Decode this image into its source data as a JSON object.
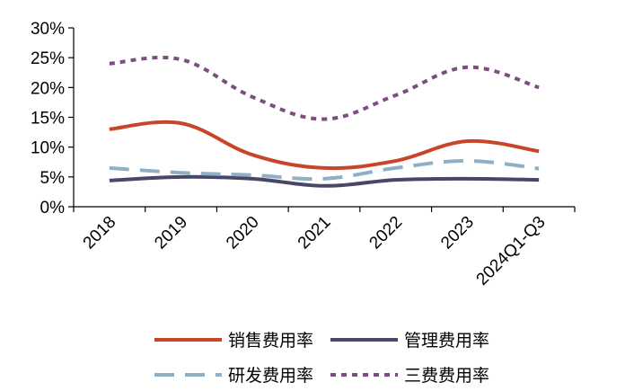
{
  "chart_data": {
    "type": "line",
    "categories": [
      "2018",
      "2019",
      "2020",
      "2021",
      "2022",
      "2023",
      "2024Q1-Q3"
    ],
    "ylim": [
      0,
      30
    ],
    "yticks": [
      0,
      5,
      10,
      15,
      20,
      25,
      30
    ],
    "ytick_labels": [
      "0%",
      "5%",
      "10%",
      "15%",
      "20%",
      "25%",
      "30%"
    ],
    "grid": false,
    "legend_position": "bottom",
    "series": [
      {
        "name": "销售费用率",
        "color": "#C9452A",
        "style": "solid",
        "values": [
          13.0,
          14.0,
          8.7,
          6.5,
          7.7,
          11.0,
          9.3
        ]
      },
      {
        "name": "管理费用率",
        "color": "#4A4668",
        "style": "solid",
        "values": [
          4.4,
          5.0,
          4.7,
          3.5,
          4.5,
          4.7,
          4.5
        ]
      },
      {
        "name": "研发费用率",
        "color": "#8FB0C4",
        "style": "dashed",
        "values": [
          6.5,
          5.7,
          5.3,
          4.7,
          6.5,
          7.7,
          6.4
        ]
      },
      {
        "name": "三费费用率",
        "color": "#7D4D82",
        "style": "dotted",
        "values": [
          24.0,
          24.7,
          18.4,
          14.7,
          18.7,
          23.4,
          20.0
        ]
      }
    ]
  }
}
